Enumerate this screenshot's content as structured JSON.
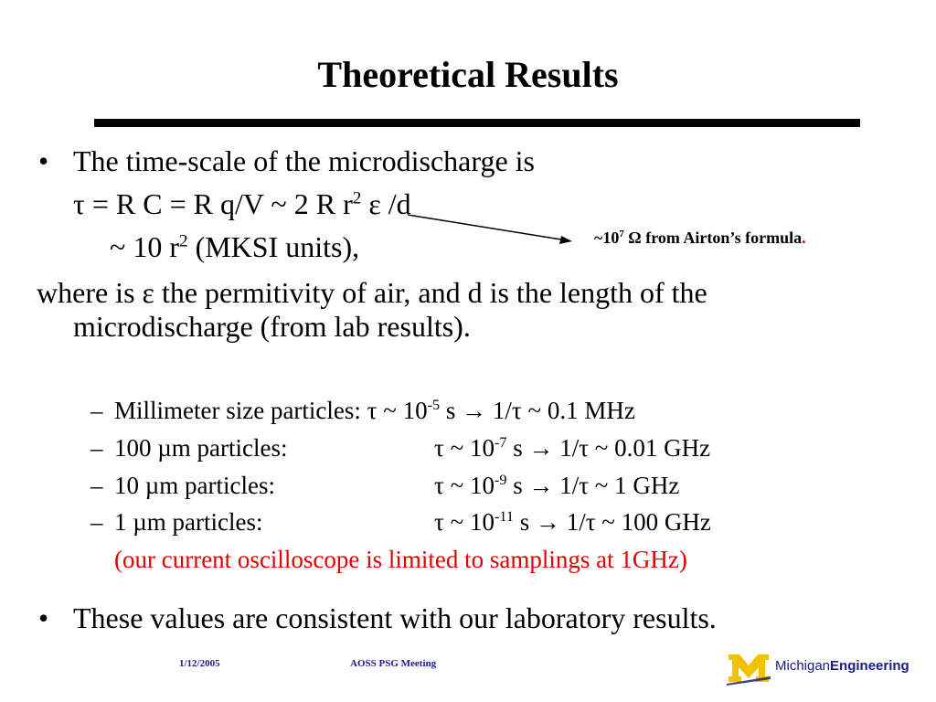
{
  "title": "Theoretical Results",
  "bullet_char": "•",
  "dash_char": "–",
  "line1": "The time-scale of the microdischarge is",
  "eq1": {
    "a": "τ  = R C = R q/V ~ 2 R r",
    "sup": "2",
    "b": " ε /d"
  },
  "eq2": {
    "a": "~ 10 r",
    "sup": "2",
    "b": " (MKSI units),"
  },
  "where_line1": "where is ε the permitivity of air, and d is the length of the",
  "where_line2": "microdischarge (from lab results).",
  "annotation": {
    "pre": "~10",
    "sup": "7",
    "post": " Ω from Airton’s formula",
    "dot": "."
  },
  "subitems": [
    {
      "label": "Millimeter size particles: τ ~ 10",
      "exp": "-5",
      "rest": "  s  → 1/τ ~ 0.1 MHz"
    },
    {
      "label": "100 µm particles:",
      "tau": "τ ~ 10",
      "exp": "-7",
      "rest": " s  → 1/τ ~ 0.01 GHz"
    },
    {
      "label": "10 µm particles:",
      "tau": "τ ~ 10",
      "exp": "-9",
      "rest": " s  → 1/τ ~ 1 GHz"
    },
    {
      "label": "1   µm particles:",
      "tau": "τ ~ 10",
      "exp": "-11",
      "rest": " s → 1/τ ~ 100 GHz"
    }
  ],
  "note": "(our current oscilloscope is limited to samplings at 1GHz)",
  "line_last": "These values are consistent with our laboratory results.",
  "footer": {
    "date": "1/12/2005",
    "meeting": "AOSS PSG Meeting"
  },
  "logo": {
    "brand": "Michigan",
    "bold": "Engineering"
  },
  "colors": {
    "note_red": "#e00000",
    "footer_blue": "#1a1a8c",
    "logo_maize": "#f2c200",
    "logo_blue": "#1a2a6c"
  }
}
